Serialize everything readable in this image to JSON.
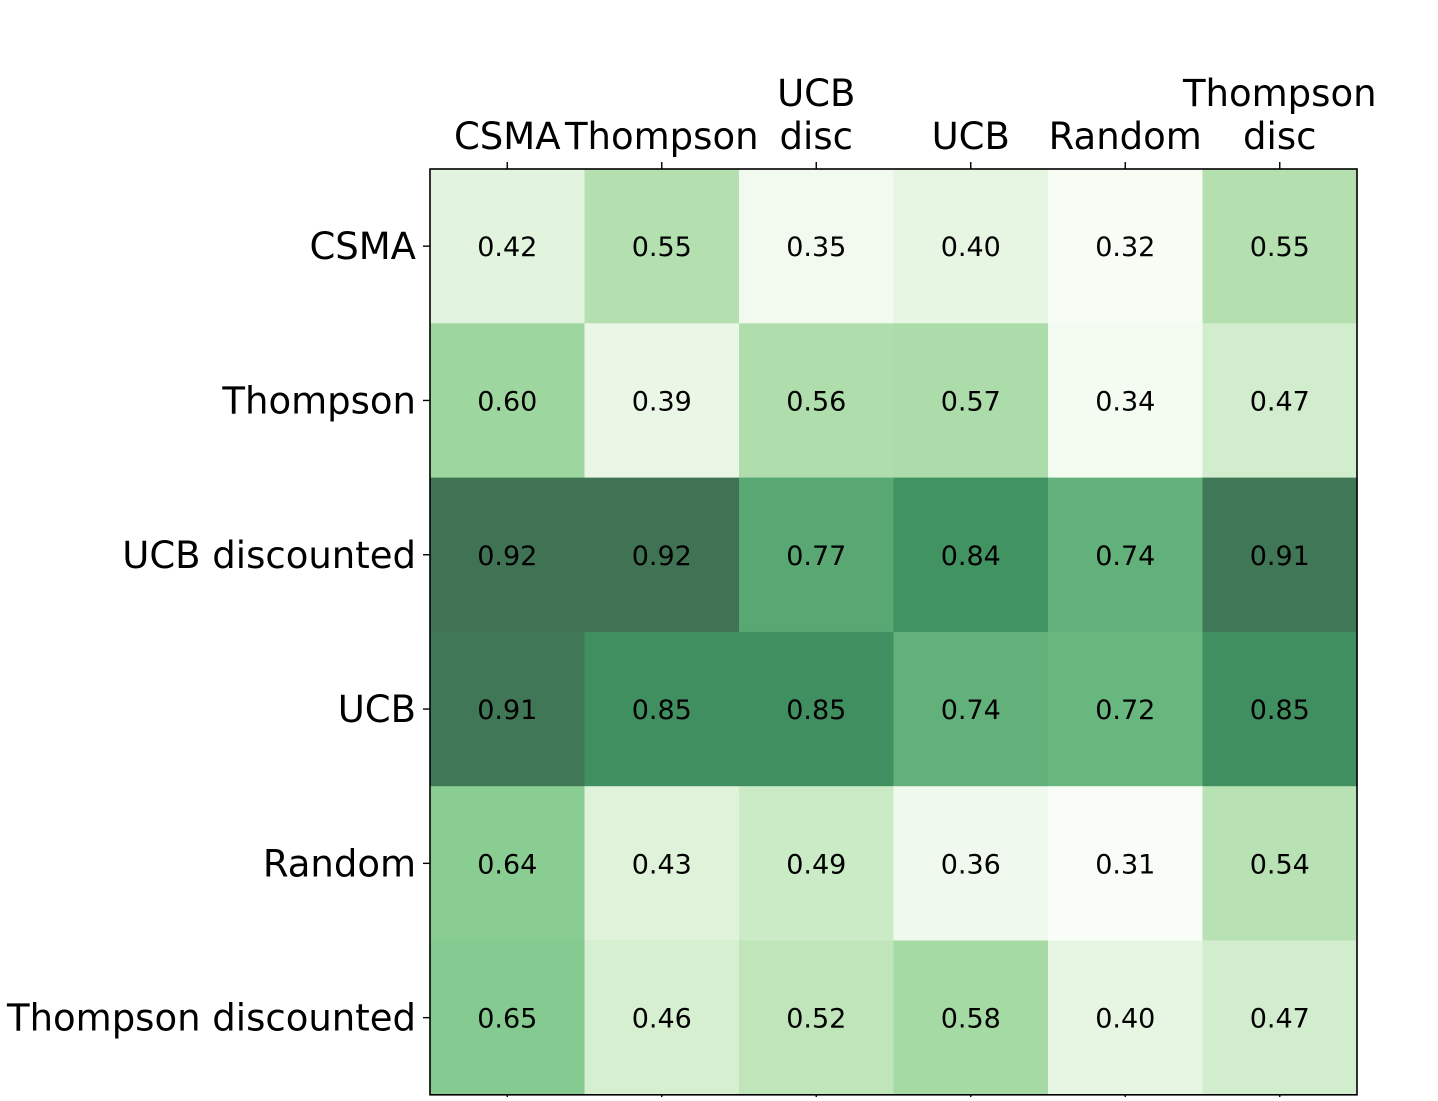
{
  "chart_data": {
    "type": "heatmap",
    "title": "",
    "xlabel": "",
    "ylabel": "",
    "columns": [
      {
        "lines": [
          "CSMA"
        ]
      },
      {
        "lines": [
          "Thompson"
        ]
      },
      {
        "lines": [
          "UCB",
          "disc"
        ]
      },
      {
        "lines": [
          "UCB"
        ]
      },
      {
        "lines": [
          "Random"
        ]
      },
      {
        "lines": [
          "Thompson",
          "disc"
        ]
      }
    ],
    "rows": [
      "CSMA",
      "Thompson",
      "UCB discounted",
      "UCB",
      "Random",
      "Thompson discounted"
    ],
    "values": [
      [
        0.42,
        0.55,
        0.35,
        0.4,
        0.32,
        0.55
      ],
      [
        0.6,
        0.39,
        0.56,
        0.57,
        0.34,
        0.47
      ],
      [
        0.92,
        0.92,
        0.77,
        0.84,
        0.74,
        0.91
      ],
      [
        0.91,
        0.85,
        0.85,
        0.74,
        0.72,
        0.85
      ],
      [
        0.64,
        0.43,
        0.49,
        0.36,
        0.31,
        0.54
      ],
      [
        0.65,
        0.46,
        0.52,
        0.58,
        0.4,
        0.47
      ]
    ],
    "value_format": "2-decimal",
    "colormap": {
      "name": "Greens",
      "vmin": 0.31,
      "vmax": 0.92,
      "alpha": 0.75,
      "stops": [
        "#f7fcf5",
        "#e5f5e0",
        "#c7e9c0",
        "#a1d99b",
        "#74c476",
        "#41ab5d",
        "#238b45",
        "#006d2c",
        "#00441b"
      ]
    },
    "x_tick_position": "top",
    "grid": false,
    "legend": "none"
  }
}
